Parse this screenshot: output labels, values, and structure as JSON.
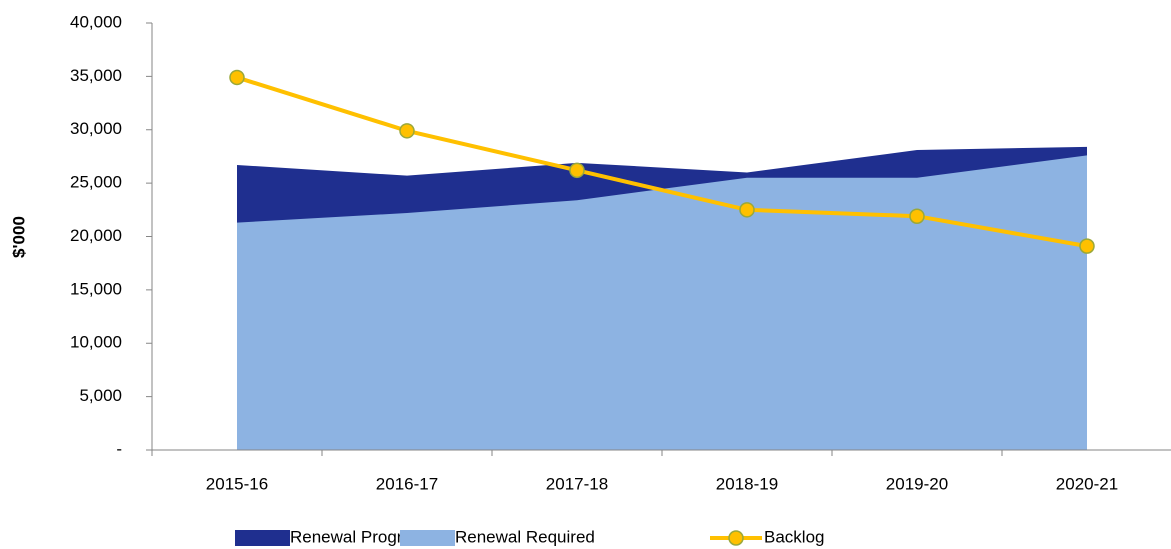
{
  "chart_data": {
    "type": "area-line",
    "y_label": "$'000",
    "categories": [
      "2015-16",
      "2016-17",
      "2017-18",
      "2018-19",
      "2019-20",
      "2020-21"
    ],
    "series": [
      {
        "name": "Renewal Program",
        "kind": "area",
        "color": "#1f2f8f",
        "values": [
          26700,
          25700,
          26900,
          26000,
          28100,
          28400
        ]
      },
      {
        "name": "Renewal Required",
        "kind": "area",
        "color": "#8db3e2",
        "values": [
          21300,
          22200,
          23400,
          25500,
          25500,
          27600
        ]
      },
      {
        "name": "Backlog",
        "kind": "line",
        "color": "#ffc000",
        "values": [
          34900,
          29900,
          26200,
          22500,
          21900,
          19100
        ]
      }
    ],
    "ylim": [
      0,
      40000
    ],
    "yticks": [
      {
        "value": 0,
        "label": "-"
      },
      {
        "value": 5000,
        "label": "5,000"
      },
      {
        "value": 10000,
        "label": "10,000"
      },
      {
        "value": 15000,
        "label": "15,000"
      },
      {
        "value": 20000,
        "label": "20,000"
      },
      {
        "value": 25000,
        "label": "25,000"
      },
      {
        "value": 30000,
        "label": "30,000"
      },
      {
        "value": 35000,
        "label": "35,000"
      },
      {
        "value": 40000,
        "label": "40,000"
      }
    ],
    "legend": "bottom"
  }
}
